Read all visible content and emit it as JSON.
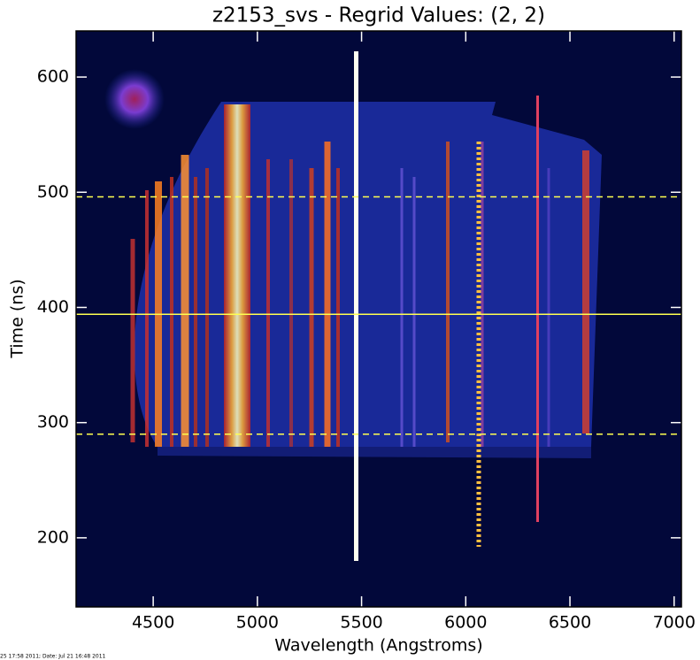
{
  "chart_data": {
    "type": "heatmap",
    "title": "z2153_svs - Regrid Values: (2, 2)",
    "x_label": "Wavelength (Angstroms)",
    "y_label": "Time (ns)",
    "xlim": [
      4130,
      7035
    ],
    "xticks": [
      4500,
      5000,
      5500,
      6000,
      6500,
      7000
    ],
    "ylim": [
      140,
      640
    ],
    "yticks": [
      200,
      300,
      400,
      500,
      600
    ],
    "hlines": [
      {
        "y": 496,
        "style": "dashed",
        "color": "#ffff50"
      },
      {
        "y": 394,
        "style": "solid",
        "color": "#ffff50"
      },
      {
        "y": 290,
        "style": "dashed",
        "color": "#ffff50"
      }
    ],
    "footer": "25 17:58 2011; Date: Jul 21 16:48 2011"
  }
}
